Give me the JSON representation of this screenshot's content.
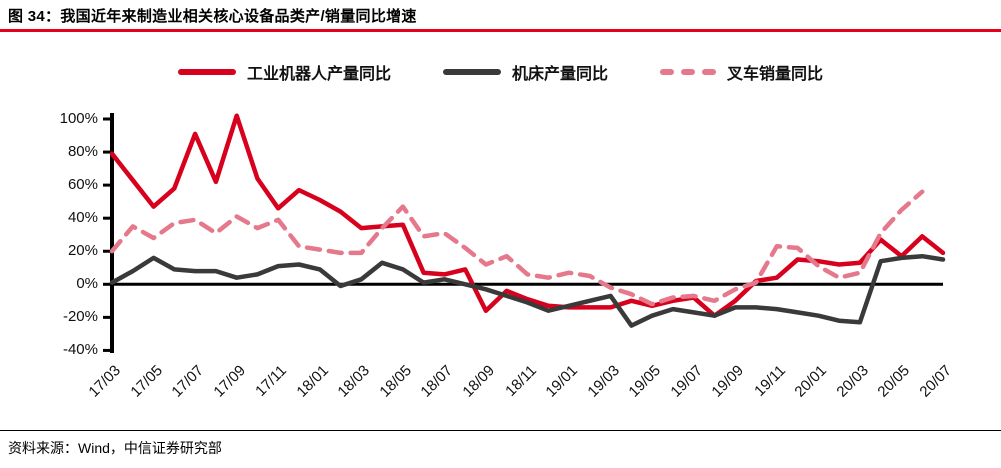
{
  "header": {
    "title": "图 34：我国近年来制造业相关核心设备品类产/销量同比增速"
  },
  "footer": {
    "source": "资料来源：Wind，中信证券研究部"
  },
  "chart_data": {
    "type": "line",
    "title": "我国近年来制造业相关核心设备品类产/销量同比增速",
    "xlabel": "",
    "ylabel": "",
    "ylim": [
      -40,
      105
    ],
    "grid": false,
    "legend_position": "top",
    "y_ticks": [
      "100%",
      "80%",
      "60%",
      "40%",
      "20%",
      "0%",
      "-20%",
      "-40%"
    ],
    "y_tick_values": [
      100,
      80,
      60,
      40,
      20,
      0,
      -20,
      -40
    ],
    "x_tick_step": 2,
    "x": [
      "17/03",
      "17/04",
      "17/05",
      "17/06",
      "17/07",
      "17/08",
      "17/09",
      "17/10",
      "17/11",
      "17/12",
      "18/01",
      "18/02",
      "18/03",
      "18/04",
      "18/05",
      "18/06",
      "18/07",
      "18/08",
      "18/09",
      "18/10",
      "18/11",
      "18/12",
      "19/01",
      "19/02",
      "19/03",
      "19/04",
      "19/05",
      "19/06",
      "19/07",
      "19/08",
      "19/09",
      "19/10",
      "19/11",
      "19/12",
      "20/01",
      "20/02",
      "20/03",
      "20/04",
      "20/05",
      "20/06",
      "20/07"
    ],
    "axis_color": "#000000",
    "series": [
      {
        "name": "工业机器人产量同比",
        "color": "#d7001d",
        "style": "solid",
        "values": [
          79,
          63,
          47,
          58,
          91,
          62,
          102,
          64,
          46,
          57,
          51,
          44,
          34,
          35,
          36,
          7,
          6,
          9,
          -16,
          -4,
          -9,
          -13,
          -14,
          -14,
          -14,
          -10,
          -13,
          -10,
          -8,
          -19,
          -10,
          2,
          4,
          15,
          14,
          12,
          13,
          27,
          17,
          29,
          19
        ]
      },
      {
        "name": "机床产量同比",
        "color": "#3a3a3a",
        "style": "solid",
        "values": [
          1,
          8,
          16,
          9,
          8,
          8,
          4,
          6,
          11,
          12,
          9,
          -1,
          3,
          13,
          9,
          1,
          3,
          0,
          -3,
          -7,
          -11,
          -16,
          -13,
          -10,
          -7,
          -25,
          -19,
          -15,
          -17,
          -19,
          -14,
          -14,
          -15,
          -17,
          -19,
          -22,
          -23,
          14,
          16,
          17,
          15
        ]
      },
      {
        "name": "叉车销量同比",
        "color": "#e5798b",
        "style": "dashed",
        "values": [
          20,
          35,
          28,
          37,
          39,
          31,
          41,
          34,
          39,
          23,
          21,
          19,
          19,
          34,
          47,
          29,
          31,
          22,
          12,
          17,
          6,
          4,
          7,
          5,
          -2,
          -6,
          -12,
          -8,
          -7,
          -10,
          -3,
          1,
          23,
          22,
          11,
          4,
          7,
          31,
          45,
          56,
          null
        ]
      }
    ]
  }
}
